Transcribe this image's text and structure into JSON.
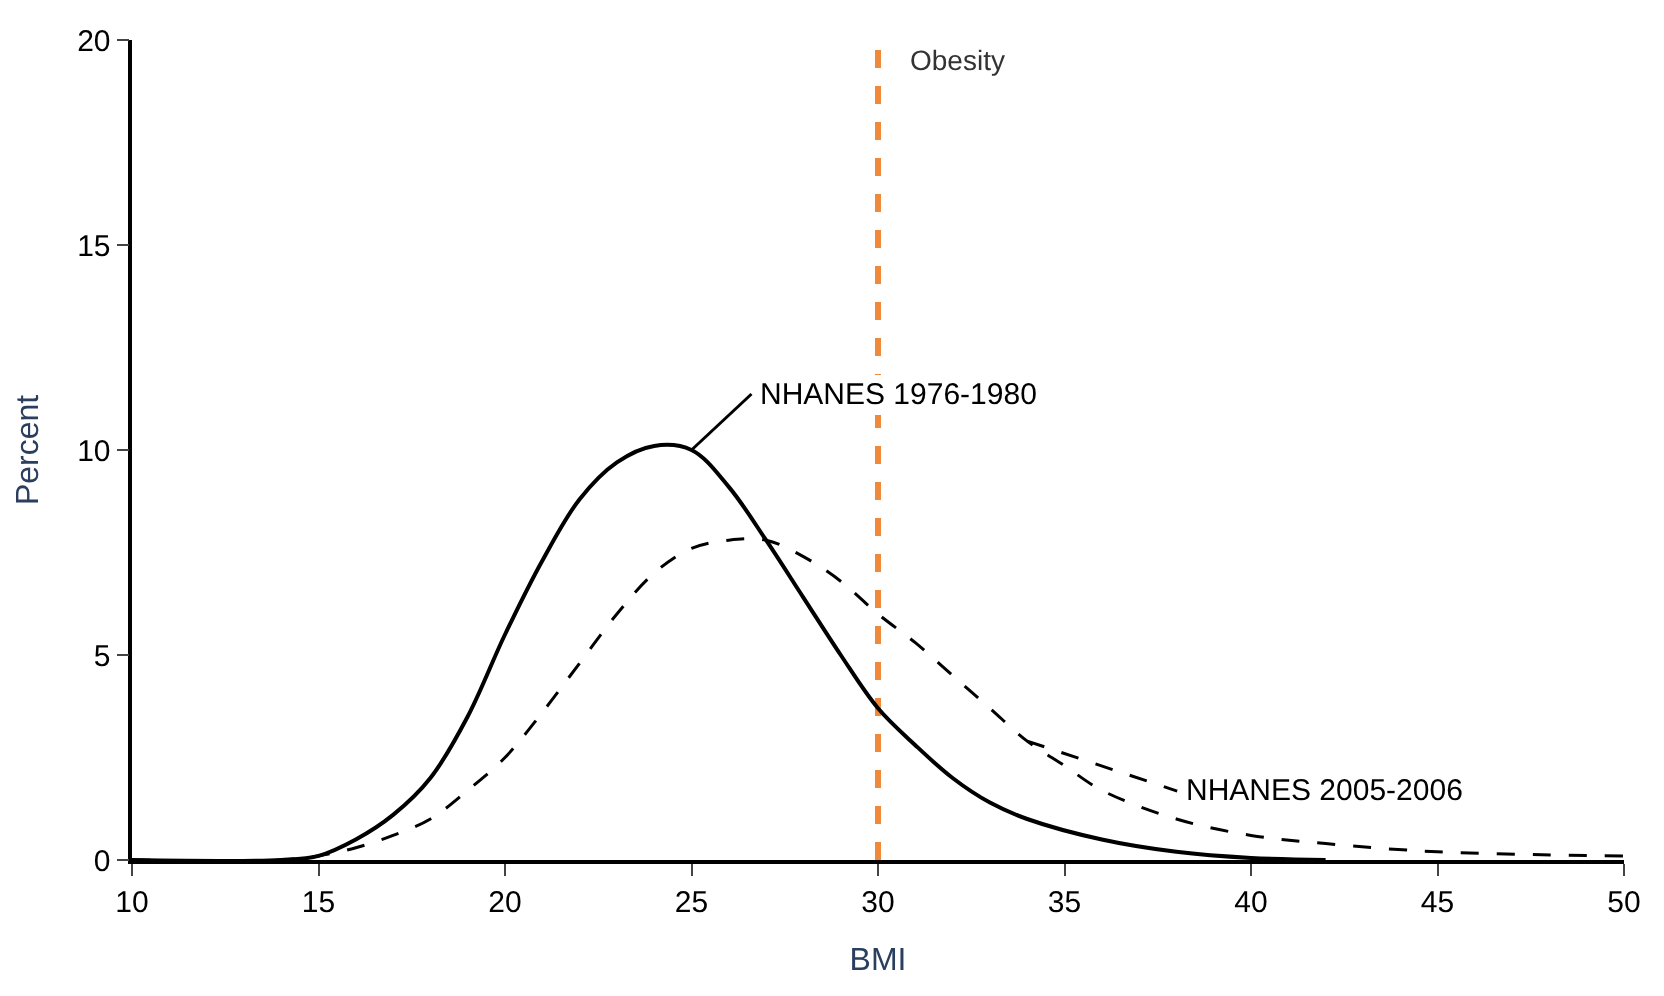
{
  "chart_data": {
    "type": "line",
    "xlabel": "BMI",
    "ylabel": "Percent",
    "xlim": [
      10,
      50
    ],
    "xticks": [
      10,
      15,
      20,
      25,
      30,
      35,
      40,
      45,
      50
    ],
    "ylim": [
      0,
      20
    ],
    "yticks": [
      0,
      5,
      10,
      15,
      20
    ],
    "grid": false,
    "legend": false,
    "marker": "none",
    "series": [
      {
        "name": "NHANES 1976-1980",
        "color": "#000000",
        "line_style": "solid",
        "x": [
          10,
          14,
          15,
          16,
          17,
          18,
          19,
          20,
          21,
          22,
          23,
          24,
          25,
          26,
          27,
          28,
          29,
          30,
          31,
          32,
          33,
          34,
          36,
          38,
          40,
          42
        ],
        "values": [
          0,
          0,
          0.1,
          0.5,
          1.1,
          2,
          3.5,
          5.5,
          7.3,
          8.8,
          9.7,
          10.1,
          10,
          9.1,
          7.8,
          6.4,
          5,
          3.7,
          2.8,
          2,
          1.4,
          1,
          0.5,
          0.2,
          0.05,
          0
        ]
      },
      {
        "name": "NHANES 2005-2006",
        "color": "#000000",
        "line_style": "dashed",
        "x": [
          10,
          14,
          15,
          16,
          17,
          18,
          19,
          20,
          21,
          22,
          23,
          24,
          25,
          26,
          27,
          28,
          29,
          30,
          31,
          32,
          33,
          34,
          35,
          36,
          38,
          40,
          42,
          45,
          50
        ],
        "values": [
          0,
          0,
          0.1,
          0.3,
          0.6,
          1,
          1.7,
          2.5,
          3.6,
          4.8,
          6,
          7,
          7.6,
          7.8,
          7.8,
          7.4,
          6.8,
          6,
          5.3,
          4.5,
          3.7,
          2.9,
          2.3,
          1.7,
          1,
          0.6,
          0.4,
          0.2,
          0.1
        ]
      }
    ],
    "ref_lines": [
      {
        "axis": "x",
        "value": 30,
        "label": "Obesity",
        "color": "#f08a3a",
        "line_style": "dashed"
      }
    ]
  }
}
